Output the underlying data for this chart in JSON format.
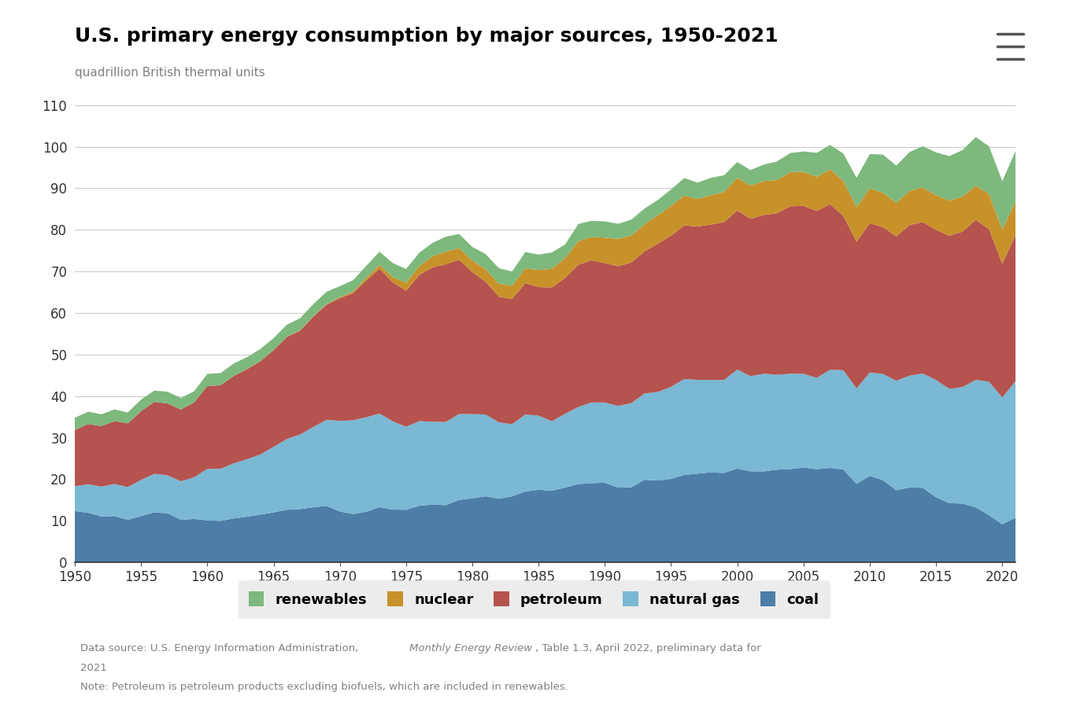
{
  "title": "U.S. primary energy consumption by major sources, 1950-2021",
  "ylabel": "quadrillion British thermal units",
  "ylim": [
    0,
    115
  ],
  "yticks": [
    0,
    10,
    20,
    30,
    40,
    50,
    60,
    70,
    80,
    90,
    100,
    110
  ],
  "xlim": [
    1950,
    2021
  ],
  "xticks": [
    1950,
    1955,
    1960,
    1965,
    1970,
    1975,
    1980,
    1985,
    1990,
    1995,
    2000,
    2005,
    2010,
    2015,
    2020
  ],
  "background_color": "#ffffff",
  "plot_bg_color": "#ffffff",
  "grid_color": "#cccccc",
  "title_color": "#000000",
  "ylabel_color": "#808080",
  "colors": {
    "coal": "#4d7ea8",
    "natural_gas": "#7ab8d4",
    "petroleum": "#b5534e",
    "nuclear": "#c8922a",
    "renewables": "#7db87d"
  },
  "legend_bg": "#e8e8e8",
  "years": [
    1950,
    1951,
    1952,
    1953,
    1954,
    1955,
    1956,
    1957,
    1958,
    1959,
    1960,
    1961,
    1962,
    1963,
    1964,
    1965,
    1966,
    1967,
    1968,
    1969,
    1970,
    1971,
    1972,
    1973,
    1974,
    1975,
    1976,
    1977,
    1978,
    1979,
    1980,
    1981,
    1982,
    1983,
    1984,
    1985,
    1986,
    1987,
    1988,
    1989,
    1990,
    1991,
    1992,
    1993,
    1994,
    1995,
    1996,
    1997,
    1998,
    1999,
    2000,
    2001,
    2002,
    2003,
    2004,
    2005,
    2006,
    2007,
    2008,
    2009,
    2010,
    2011,
    2012,
    2013,
    2014,
    2015,
    2016,
    2017,
    2018,
    2019,
    2020,
    2021
  ],
  "coal": [
    12.35,
    11.95,
    11.07,
    11.15,
    10.24,
    11.17,
    12.04,
    11.82,
    10.23,
    10.47,
    10.11,
    9.98,
    10.59,
    11.01,
    11.49,
    12.04,
    12.66,
    12.82,
    13.26,
    13.6,
    12.26,
    11.64,
    12.19,
    13.3,
    12.7,
    12.67,
    13.63,
    13.92,
    13.77,
    15.04,
    15.42,
    15.91,
    15.32,
    15.89,
    17.07,
    17.48,
    17.26,
    18.0,
    18.85,
    19.07,
    19.17,
    18.0,
    18.09,
    19.87,
    19.71,
    20.09,
    21.03,
    21.37,
    21.66,
    21.52,
    22.58,
    21.91,
    21.9,
    22.32,
    22.47,
    22.8,
    22.44,
    22.74,
    22.38,
    18.89,
    20.82,
    19.79,
    17.34,
    18.05,
    17.95,
    15.67,
    14.25,
    14.15,
    13.25,
    11.36,
    9.17,
    10.75
  ],
  "natural_gas": [
    5.97,
    6.85,
    7.16,
    7.71,
    7.88,
    8.69,
    9.27,
    9.14,
    9.29,
    10.01,
    12.39,
    12.53,
    13.26,
    13.83,
    14.47,
    15.77,
    17.02,
    17.93,
    19.33,
    20.7,
    21.8,
    22.54,
    22.74,
    22.51,
    21.23,
    19.95,
    20.35,
    19.93,
    20.0,
    20.67,
    20.24,
    19.69,
    18.38,
    17.35,
    18.51,
    17.83,
    16.71,
    17.75,
    18.55,
    19.4,
    19.3,
    19.64,
    20.22,
    20.76,
    21.29,
    22.15,
    23.09,
    22.54,
    22.24,
    22.36,
    23.82,
    22.89,
    23.49,
    22.82,
    22.93,
    22.57,
    21.96,
    23.62,
    23.84,
    22.96,
    24.87,
    25.53,
    26.35,
    26.87,
    27.49,
    28.22,
    27.49,
    28.03,
    30.66,
    32.1,
    30.47,
    32.91
  ],
  "petroleum": [
    13.49,
    14.49,
    14.55,
    15.14,
    15.33,
    16.55,
    17.3,
    17.29,
    17.27,
    18.01,
    19.92,
    20.11,
    21.02,
    21.65,
    22.44,
    23.25,
    24.56,
    25.01,
    26.55,
    27.71,
    29.52,
    30.56,
    32.95,
    34.84,
    33.45,
    32.73,
    35.17,
    37.12,
    37.96,
    37.12,
    34.2,
    31.93,
    30.23,
    30.12,
    31.61,
    30.92,
    32.2,
    32.67,
    34.22,
    34.21,
    33.55,
    33.6,
    33.84,
    34.21,
    35.66,
    36.38,
    36.96,
    36.89,
    37.37,
    37.99,
    38.26,
    37.85,
    38.2,
    38.87,
    40.29,
    40.39,
    40.15,
    39.81,
    37.14,
    35.27,
    35.89,
    35.33,
    34.74,
    36.24,
    36.44,
    36.1,
    36.87,
    37.39,
    38.47,
    36.7,
    32.22,
    35.05
  ],
  "nuclear": [
    0.0,
    0.0,
    0.0,
    0.0,
    0.0,
    0.0,
    0.0,
    0.0,
    0.0,
    0.0,
    0.01,
    0.02,
    0.03,
    0.04,
    0.04,
    0.04,
    0.06,
    0.09,
    0.14,
    0.15,
    0.24,
    0.41,
    0.58,
    0.91,
    1.27,
    1.9,
    2.11,
    2.7,
    3.02,
    2.78,
    2.74,
    3.01,
    3.13,
    3.2,
    3.55,
    4.15,
    4.47,
    4.75,
    5.66,
    5.6,
    6.1,
    6.58,
    6.48,
    6.52,
    6.84,
    7.18,
    7.17,
    6.6,
    7.07,
    7.27,
    7.86,
    8.03,
    8.15,
    7.97,
    8.22,
    8.16,
    8.21,
    8.41,
    8.43,
    8.35,
    8.43,
    8.26,
    8.05,
    8.27,
    8.33,
    8.34,
    8.43,
    8.42,
    8.26,
    8.46,
    8.24,
    8.1
  ],
  "renewables": [
    2.97,
    2.97,
    2.86,
    2.8,
    2.62,
    2.77,
    2.73,
    2.8,
    2.76,
    2.67,
    2.93,
    2.91,
    2.96,
    2.85,
    2.9,
    2.86,
    2.86,
    2.9,
    2.84,
    2.96,
    2.64,
    2.74,
    2.89,
    3.2,
    3.35,
    3.34,
    3.24,
    3.19,
    3.59,
    3.41,
    3.29,
    3.65,
    3.73,
    3.4,
    3.92,
    3.66,
    3.92,
    3.29,
    4.13,
    3.9,
    3.92,
    3.63,
    3.83,
    3.76,
    3.69,
    3.94,
    4.21,
    3.97,
    4.17,
    3.99,
    3.8,
    3.69,
    3.97,
    4.47,
    4.56,
    4.94,
    5.78,
    5.85,
    6.59,
    7.03,
    8.22,
    9.17,
    8.98,
    9.28,
    9.93,
    10.31,
    10.7,
    11.2,
    11.68,
    11.46,
    11.6,
    12.17
  ]
}
